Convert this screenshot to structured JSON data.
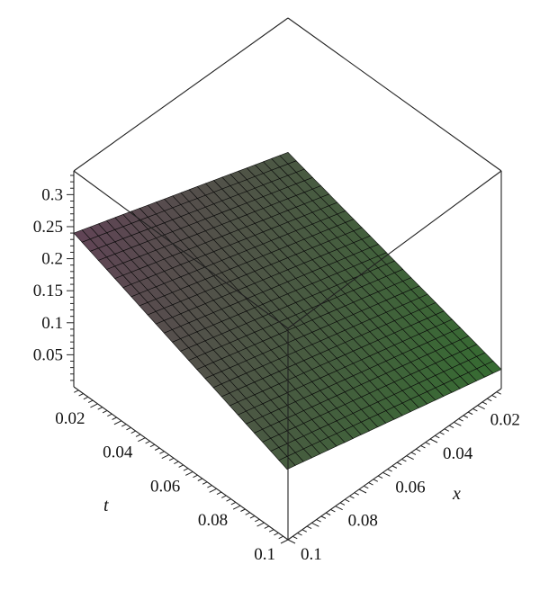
{
  "chart_data": {
    "type": "surface3d",
    "title": "",
    "axes": {
      "z": {
        "label": "",
        "range": [
          0.0,
          0.33
        ],
        "ticks": [
          "0.05",
          "0.1",
          "0.15",
          "0.2",
          "0.25",
          "0.3"
        ]
      },
      "t": {
        "label": "t",
        "range": [
          0.01,
          0.1
        ],
        "ticks": [
          "0.02",
          "0.04",
          "0.06",
          "0.08",
          "0.1"
        ]
      },
      "x": {
        "label": "x",
        "range": [
          0.01,
          0.1
        ],
        "ticks": [
          "0.02",
          "0.04",
          "0.06",
          "0.08",
          "0.1"
        ]
      }
    },
    "surface": {
      "corners": [
        {
          "t": 0.01,
          "x": 0.01,
          "z": 0.11
        },
        {
          "t": 0.01,
          "x": 0.1,
          "z": 0.24
        },
        {
          "t": 0.1,
          "x": 0.01,
          "z": 0.03
        },
        {
          "t": 0.1,
          "x": 0.1,
          "z": 0.13
        }
      ],
      "colors": {
        "low": "#62c45a",
        "high": "#b07a9c",
        "mesh": "#0a0a0a"
      }
    },
    "grid": false,
    "legend": "none"
  }
}
